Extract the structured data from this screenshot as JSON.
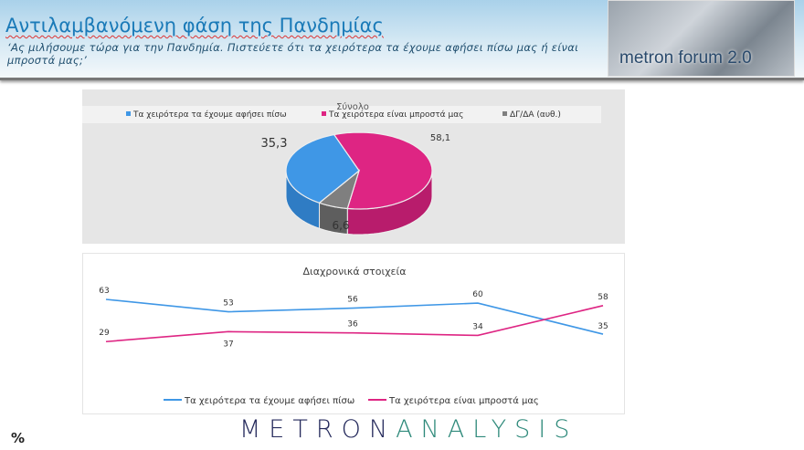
{
  "header": {
    "title": "Αντιλαμβανόμενη φάση της Πανδημίας",
    "subtitle": "‘Ας μιλήσουμε τώρα για την Πανδημία. Πιστεύετε ότι τα χειρότερα τα έχουμε αφήσει πίσω μας ή είναι μπροστά μας;’",
    "logo_text": "metron forum 2.0"
  },
  "footer": {
    "brand_left": "METRON",
    "brand_right": "ANALYSIS",
    "unit": "%"
  },
  "colors": {
    "blue": "#3f97e6",
    "pink": "#de2583",
    "gray": "#7f7f7f"
  },
  "chart_data": [
    {
      "type": "pie",
      "title": "Σύνολο",
      "legend_position": "top",
      "three_d": true,
      "categories": [
        "Τα χειρότερα τα έχουμε αφήσει πίσω",
        "Τα χειρότερα είναι μπροστά μας",
        "ΔΓ/ΔΑ (αυθ.)"
      ],
      "values": [
        35.3,
        58.1,
        6.6
      ],
      "labels": [
        "35,3",
        "58,1",
        "6,6"
      ]
    },
    {
      "type": "line",
      "title": "Διαχρονικά στοιχεία",
      "legend_position": "bottom",
      "grid": false,
      "series": [
        {
          "name": "Τα χειρότερα τα έχουμε αφήσει πίσω",
          "values": [
            63,
            53,
            56,
            60,
            35
          ]
        },
        {
          "name": "Τα χειρότερα είναι μπροστά μας",
          "values": [
            29,
            37,
            36,
            34,
            58
          ]
        }
      ]
    }
  ]
}
